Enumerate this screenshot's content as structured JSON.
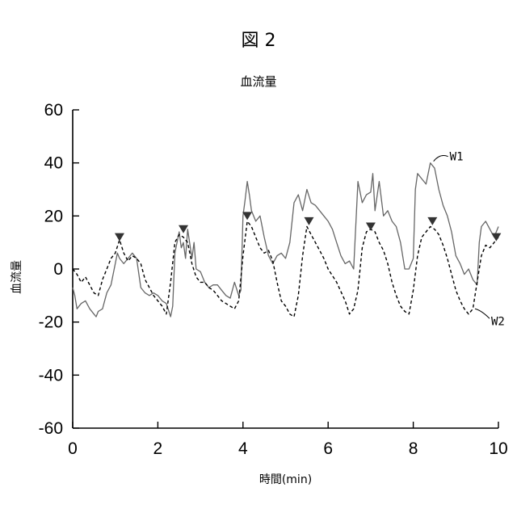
{
  "figure_label": "図 2",
  "chart_data": {
    "type": "line",
    "title": "血流量",
    "xlabel": "時間(min)",
    "ylabel": "血流量",
    "xlim": [
      0,
      10
    ],
    "ylim": [
      -60,
      60
    ],
    "xticks": [
      0,
      2,
      4,
      6,
      8,
      10
    ],
    "yticks": [
      60,
      40,
      20,
      0,
      -20,
      -40,
      -60
    ],
    "grid": false,
    "series": [
      {
        "name": "W1",
        "style": "solid",
        "color": "#666666",
        "x": [
          0,
          0.05,
          0.1,
          0.2,
          0.3,
          0.4,
          0.5,
          0.55,
          0.6,
          0.7,
          0.8,
          0.9,
          1.0,
          1.05,
          1.1,
          1.2,
          1.3,
          1.4,
          1.5,
          1.6,
          1.7,
          1.8,
          1.9,
          2.0,
          2.1,
          2.2,
          2.3,
          2.35,
          2.4,
          2.5,
          2.55,
          2.6,
          2.65,
          2.7,
          2.8,
          2.85,
          2.9,
          3.0,
          3.1,
          3.2,
          3.3,
          3.4,
          3.5,
          3.6,
          3.7,
          3.8,
          3.9,
          3.95,
          4.0,
          4.05,
          4.1,
          4.15,
          4.2,
          4.3,
          4.4,
          4.5,
          4.6,
          4.7,
          4.8,
          4.9,
          5.0,
          5.1,
          5.2,
          5.3,
          5.4,
          5.5,
          5.6,
          5.7,
          5.8,
          5.9,
          6.0,
          6.1,
          6.2,
          6.3,
          6.4,
          6.5,
          6.6,
          6.7,
          6.8,
          6.9,
          7.0,
          7.05,
          7.1,
          7.2,
          7.3,
          7.4,
          7.5,
          7.6,
          7.7,
          7.8,
          7.9,
          8.0,
          8.05,
          8.1,
          8.2,
          8.3,
          8.4,
          8.5,
          8.6,
          8.7,
          8.8,
          8.9,
          9.0,
          9.1,
          9.2,
          9.3,
          9.4,
          9.5,
          9.55,
          9.6,
          9.7,
          9.8,
          9.9,
          10.0
        ],
        "y": [
          -7,
          -10,
          -15,
          -13,
          -12,
          -15,
          -17,
          -18,
          -16,
          -15,
          -9,
          -6,
          2,
          6,
          4,
          2,
          4,
          6,
          4,
          -7,
          -9,
          -10,
          -9,
          -10,
          -12,
          -13,
          -18,
          -14,
          6,
          14,
          8,
          10,
          4,
          15,
          4,
          10,
          0,
          -1,
          -5,
          -7,
          -6,
          -6,
          -8,
          -10,
          -11,
          -5,
          -10,
          -8,
          20,
          26,
          33,
          28,
          22,
          18,
          20,
          12,
          5,
          2,
          5,
          6,
          4,
          10,
          25,
          28,
          22,
          30,
          25,
          24,
          22,
          20,
          18,
          15,
          10,
          5,
          2,
          3,
          0,
          33,
          25,
          28,
          29,
          36,
          22,
          33,
          20,
          22,
          18,
          16,
          10,
          0,
          0,
          4,
          30,
          36,
          34,
          32,
          40,
          38,
          30,
          24,
          20,
          14,
          5,
          2,
          -2,
          0,
          -4,
          -6,
          10,
          16,
          18,
          15,
          12,
          16
        ]
      },
      {
        "name": "W2",
        "style": "dashed",
        "color": "#000000",
        "x": [
          0,
          0.1,
          0.2,
          0.3,
          0.4,
          0.5,
          0.6,
          0.7,
          0.8,
          0.9,
          1.0,
          1.1,
          1.2,
          1.3,
          1.4,
          1.5,
          1.6,
          1.7,
          1.8,
          1.9,
          2.0,
          2.1,
          2.2,
          2.3,
          2.4,
          2.5,
          2.6,
          2.7,
          2.8,
          2.9,
          3.0,
          3.1,
          3.2,
          3.3,
          3.4,
          3.5,
          3.6,
          3.7,
          3.8,
          3.9,
          4.0,
          4.1,
          4.2,
          4.3,
          4.4,
          4.5,
          4.6,
          4.7,
          4.8,
          4.9,
          5.0,
          5.1,
          5.2,
          5.3,
          5.4,
          5.5,
          5.6,
          5.7,
          5.8,
          5.9,
          6.0,
          6.2,
          6.4,
          6.5,
          6.6,
          6.7,
          6.8,
          6.9,
          7.0,
          7.1,
          7.2,
          7.3,
          7.4,
          7.5,
          7.6,
          7.7,
          7.8,
          7.9,
          8.0,
          8.1,
          8.2,
          8.3,
          8.4,
          8.5,
          8.6,
          8.7,
          8.8,
          8.9,
          9.0,
          9.1,
          9.2,
          9.3,
          9.4,
          9.5,
          9.6,
          9.7,
          9.8,
          9.9,
          10.0
        ],
        "y": [
          0,
          -2,
          -5,
          -3,
          -6,
          -9,
          -10,
          -4,
          0,
          4,
          6,
          11,
          6,
          3,
          5,
          4,
          2,
          -4,
          -7,
          -10,
          -12,
          -14,
          -17,
          -5,
          10,
          13,
          12,
          10,
          2,
          -3,
          -5,
          -5,
          -7,
          -8,
          -10,
          -12,
          -13,
          -14,
          -15,
          -12,
          5,
          18,
          16,
          12,
          8,
          6,
          7,
          3,
          -5,
          -12,
          -14,
          -17,
          -18,
          -10,
          5,
          16,
          13,
          10,
          7,
          4,
          0,
          -5,
          -12,
          -17,
          -15,
          -8,
          8,
          14,
          15,
          14,
          10,
          7,
          2,
          -5,
          -10,
          -14,
          -16,
          -17,
          -8,
          5,
          12,
          14,
          16,
          15,
          13,
          9,
          4,
          -2,
          -8,
          -12,
          -15,
          -17,
          -15,
          -5,
          5,
          9,
          8,
          10,
          12
        ]
      }
    ],
    "markers": {
      "shape": "down-triangle",
      "color": "#333333",
      "x": [
        1.1,
        2.6,
        4.1,
        5.55,
        7.0,
        8.45,
        9.95
      ],
      "y": [
        12,
        15,
        20,
        18,
        16,
        18,
        12
      ]
    }
  }
}
